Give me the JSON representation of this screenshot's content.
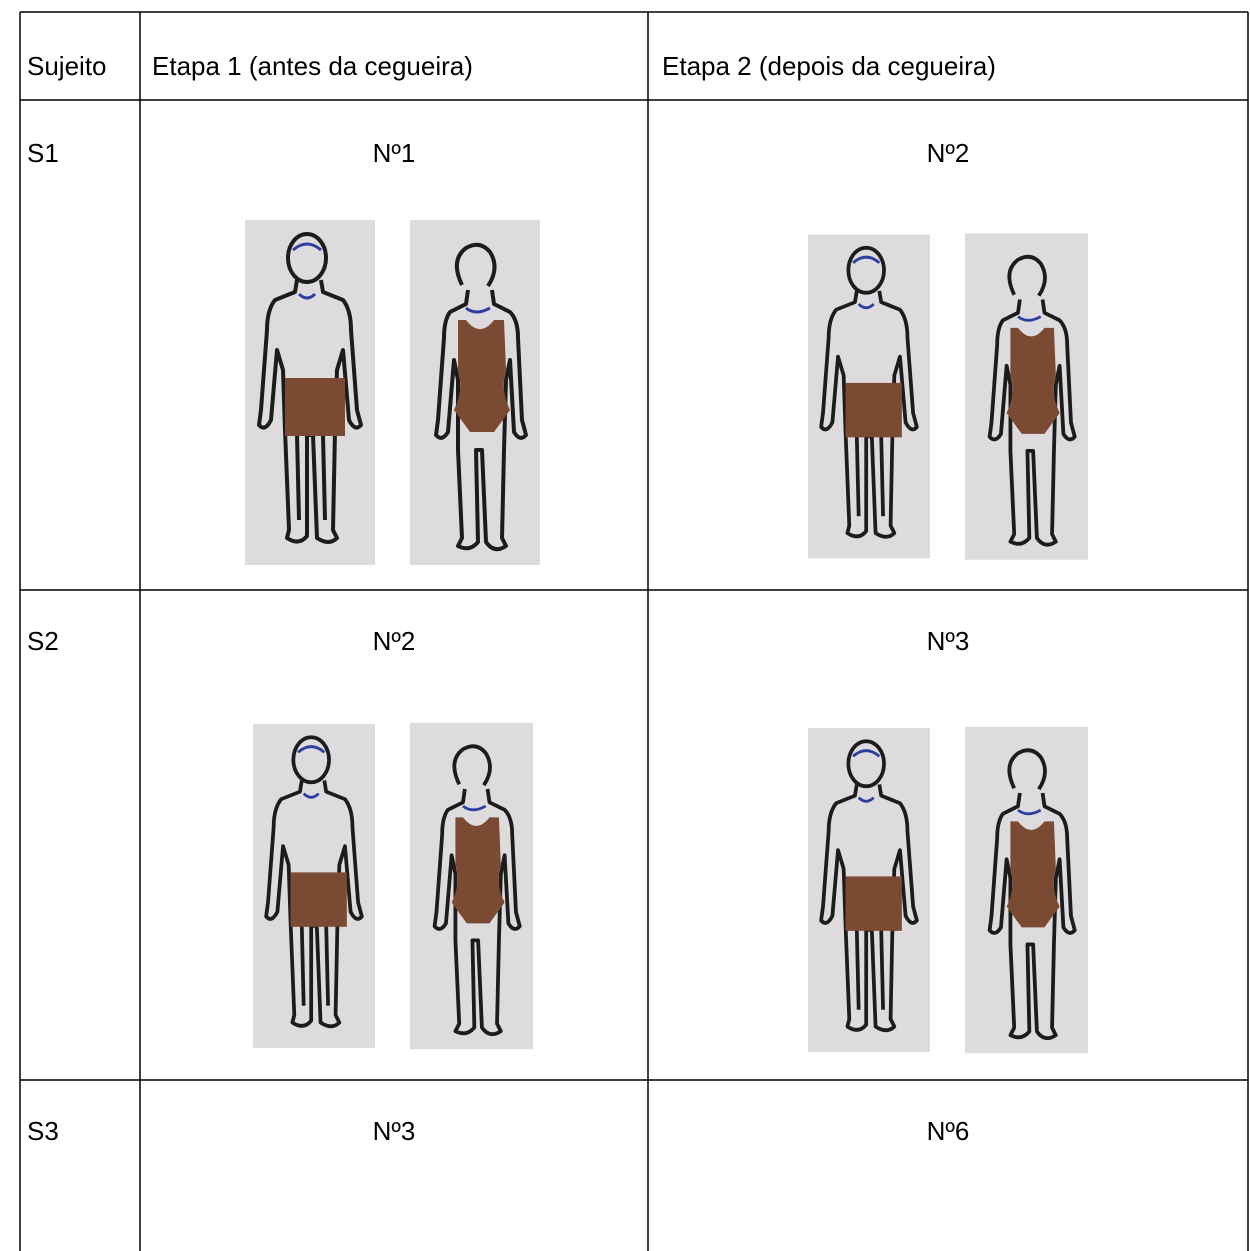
{
  "table": {
    "header": [
      "Sujeito",
      "Etapa 1 (antes da cegueira)",
      "Etapa 2 (depois da cegueira)"
    ],
    "rows": [
      [
        "S1",
        "Nº1",
        "Nº2"
      ],
      [
        "S2",
        "Nº2",
        "Nº3"
      ],
      [
        "S3",
        "Nº3",
        "Nº6"
      ]
    ]
  }
}
